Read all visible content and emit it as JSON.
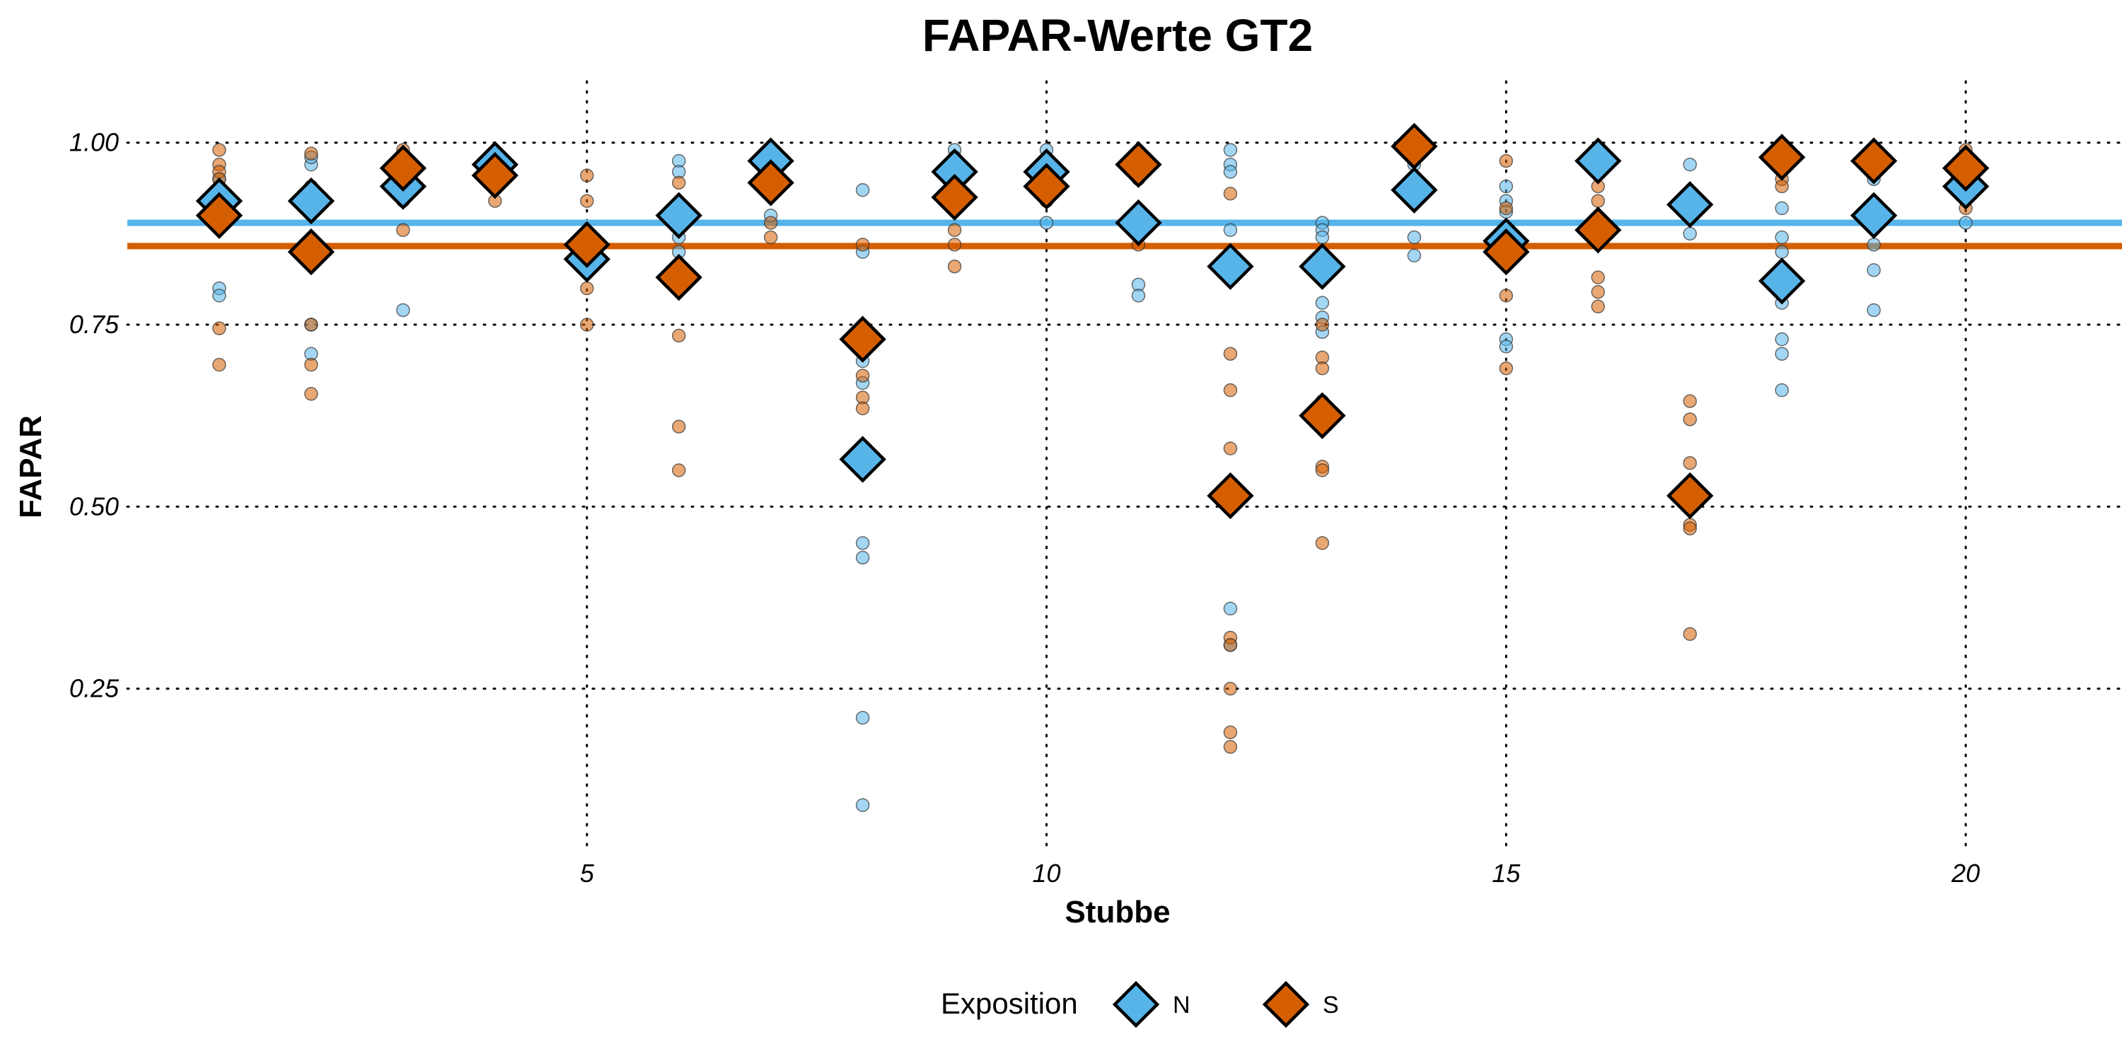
{
  "chart_data": {
    "type": "scatter",
    "title": "FAPAR-Werte GT2",
    "xlabel": "Stubbe",
    "ylabel": "FAPAR",
    "xlim": [
      0.0,
      21.7
    ],
    "ylim": [
      0.03,
      1.06
    ],
    "x_ticks": [
      5,
      10,
      15,
      20
    ],
    "x_tick_labels": [
      "5",
      "10",
      "15",
      "20"
    ],
    "y_ticks": [
      0.25,
      0.5,
      0.75,
      1.0
    ],
    "y_tick_labels": [
      "0.25",
      "0.50",
      "0.75",
      "1.00"
    ],
    "grid": "dotted major gridlines",
    "legend": {
      "title": "Exposition",
      "placement": "bottom",
      "entries": [
        {
          "label": "N",
          "color": "#56B4E9"
        },
        {
          "label": "S",
          "color": "#D55E00"
        }
      ]
    },
    "series": [
      {
        "name": "N",
        "color": "#56B4E9",
        "overall_mean": 0.89,
        "means": [
          [
            1,
            0.92
          ],
          [
            2,
            0.92
          ],
          [
            3,
            0.94
          ],
          [
            4,
            0.97
          ],
          [
            5,
            0.84
          ],
          [
            6,
            0.9
          ],
          [
            7,
            0.975
          ],
          [
            8,
            0.565
          ],
          [
            9,
            0.96
          ],
          [
            10,
            0.96
          ],
          [
            11,
            0.89
          ],
          [
            12,
            0.83
          ],
          [
            13,
            0.83
          ],
          [
            14,
            0.935
          ],
          [
            15,
            0.865
          ],
          [
            16,
            0.975
          ],
          [
            17,
            0.915
          ],
          [
            18,
            0.81
          ],
          [
            19,
            0.9
          ],
          [
            20,
            0.94
          ]
        ],
        "points": [
          [
            1,
            0.8
          ],
          [
            1,
            0.79
          ],
          [
            1,
            0.93
          ],
          [
            1,
            0.95
          ],
          [
            2,
            0.97
          ],
          [
            2,
            0.98
          ],
          [
            2,
            0.94
          ],
          [
            2,
            0.71
          ],
          [
            2,
            0.75
          ],
          [
            3,
            0.77
          ],
          [
            3,
            0.95
          ],
          [
            3,
            0.92
          ],
          [
            4,
            0.98
          ],
          [
            4,
            0.96
          ],
          [
            5,
            0.83
          ],
          [
            5,
            0.84
          ],
          [
            6,
            0.975
          ],
          [
            6,
            0.96
          ],
          [
            6,
            0.87
          ],
          [
            6,
            0.85
          ],
          [
            7,
            0.99
          ],
          [
            7,
            0.96
          ],
          [
            7,
            0.9
          ],
          [
            8,
            0.935
          ],
          [
            8,
            0.85
          ],
          [
            8,
            0.73
          ],
          [
            8,
            0.7
          ],
          [
            8,
            0.67
          ],
          [
            8,
            0.45
          ],
          [
            8,
            0.43
          ],
          [
            8,
            0.21
          ],
          [
            8,
            0.09
          ],
          [
            9,
            0.99
          ],
          [
            9,
            0.98
          ],
          [
            9,
            0.95
          ],
          [
            10,
            0.99
          ],
          [
            10,
            0.97
          ],
          [
            10,
            0.92
          ],
          [
            10,
            0.89
          ],
          [
            11,
            0.805
          ],
          [
            11,
            0.79
          ],
          [
            11,
            0.95
          ],
          [
            12,
            0.99
          ],
          [
            12,
            0.97
          ],
          [
            12,
            0.96
          ],
          [
            12,
            0.88
          ],
          [
            12,
            0.36
          ],
          [
            12,
            0.31
          ],
          [
            13,
            0.89
          ],
          [
            13,
            0.88
          ],
          [
            13,
            0.87
          ],
          [
            13,
            0.78
          ],
          [
            13,
            0.76
          ],
          [
            13,
            0.74
          ],
          [
            14,
            0.87
          ],
          [
            14,
            0.845
          ],
          [
            14,
            0.97
          ],
          [
            15,
            0.94
          ],
          [
            15,
            0.92
          ],
          [
            15,
            0.905
          ],
          [
            15,
            0.73
          ],
          [
            15,
            0.72
          ],
          [
            16,
            0.99
          ],
          [
            16,
            0.96
          ],
          [
            17,
            0.97
          ],
          [
            17,
            0.875
          ],
          [
            17,
            0.93
          ],
          [
            18,
            0.91
          ],
          [
            18,
            0.87
          ],
          [
            18,
            0.85
          ],
          [
            18,
            0.78
          ],
          [
            18,
            0.73
          ],
          [
            18,
            0.71
          ],
          [
            18,
            0.66
          ],
          [
            19,
            0.95
          ],
          [
            19,
            0.86
          ],
          [
            19,
            0.825
          ],
          [
            19,
            0.77
          ],
          [
            20,
            0.93
          ],
          [
            20,
            0.89
          ],
          [
            20,
            0.96
          ]
        ]
      },
      {
        "name": "S",
        "color": "#D55E00",
        "overall_mean": 0.858,
        "means": [
          [
            1,
            0.9
          ],
          [
            2,
            0.85
          ],
          [
            3,
            0.965
          ],
          [
            4,
            0.955
          ],
          [
            5,
            0.86
          ],
          [
            6,
            0.815
          ],
          [
            7,
            0.945
          ],
          [
            8,
            0.73
          ],
          [
            9,
            0.925
          ],
          [
            10,
            0.94
          ],
          [
            11,
            0.97
          ],
          [
            12,
            0.515
          ],
          [
            13,
            0.625
          ],
          [
            14,
            0.995
          ],
          [
            15,
            0.85
          ],
          [
            16,
            0.88
          ],
          [
            17,
            0.515
          ],
          [
            18,
            0.98
          ],
          [
            19,
            0.975
          ],
          [
            20,
            0.965
          ]
        ],
        "points": [
          [
            1,
            0.99
          ],
          [
            1,
            0.97
          ],
          [
            1,
            0.96
          ],
          [
            1,
            0.95
          ],
          [
            1,
            0.745
          ],
          [
            1,
            0.695
          ],
          [
            2,
            0.985
          ],
          [
            2,
            0.75
          ],
          [
            2,
            0.695
          ],
          [
            2,
            0.655
          ],
          [
            3,
            0.99
          ],
          [
            3,
            0.88
          ],
          [
            4,
            0.92
          ],
          [
            4,
            0.94
          ],
          [
            5,
            0.955
          ],
          [
            5,
            0.92
          ],
          [
            5,
            0.8
          ],
          [
            5,
            0.75
          ],
          [
            6,
            0.945
          ],
          [
            6,
            0.735
          ],
          [
            6,
            0.61
          ],
          [
            6,
            0.55
          ],
          [
            7,
            0.89
          ],
          [
            7,
            0.87
          ],
          [
            8,
            0.86
          ],
          [
            8,
            0.68
          ],
          [
            8,
            0.65
          ],
          [
            8,
            0.635
          ],
          [
            9,
            0.86
          ],
          [
            9,
            0.83
          ],
          [
            9,
            0.88
          ],
          [
            10,
            0.92
          ],
          [
            10,
            0.97
          ],
          [
            11,
            0.86
          ],
          [
            12,
            0.93
          ],
          [
            12,
            0.71
          ],
          [
            12,
            0.66
          ],
          [
            12,
            0.58
          ],
          [
            12,
            0.32
          ],
          [
            12,
            0.31
          ],
          [
            12,
            0.25
          ],
          [
            12,
            0.19
          ],
          [
            12,
            0.17
          ],
          [
            13,
            0.75
          ],
          [
            13,
            0.705
          ],
          [
            13,
            0.69
          ],
          [
            13,
            0.645
          ],
          [
            13,
            0.555
          ],
          [
            13,
            0.55
          ],
          [
            13,
            0.45
          ],
          [
            14,
            0.99
          ],
          [
            15,
            0.975
          ],
          [
            15,
            0.91
          ],
          [
            15,
            0.79
          ],
          [
            15,
            0.69
          ],
          [
            16,
            0.94
          ],
          [
            16,
            0.92
          ],
          [
            16,
            0.815
          ],
          [
            16,
            0.795
          ],
          [
            16,
            0.775
          ],
          [
            17,
            0.645
          ],
          [
            17,
            0.62
          ],
          [
            17,
            0.56
          ],
          [
            17,
            0.475
          ],
          [
            17,
            0.47
          ],
          [
            17,
            0.325
          ],
          [
            18,
            0.95
          ],
          [
            18,
            0.94
          ],
          [
            19,
            0.99
          ],
          [
            20,
            0.99
          ],
          [
            20,
            0.91
          ]
        ]
      }
    ]
  }
}
